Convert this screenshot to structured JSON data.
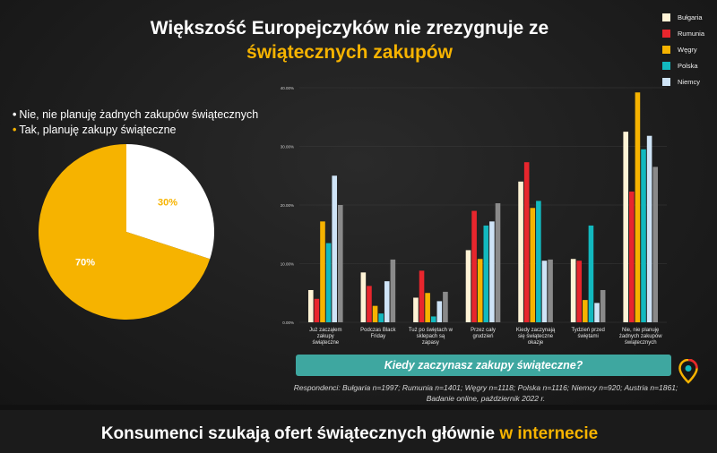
{
  "header": {
    "title_line1": "Większość Europejczyków nie zrezygnuje ze",
    "title_line2": "świątecznych zakupów"
  },
  "pie_legend": {
    "no_label": "Nie, nie planuję żadnych zakupów świątecznych",
    "yes_label": "Tak, planuję zakupy świąteczne",
    "no_color": "#ffffff",
    "yes_color": "#f6b300"
  },
  "question_banner": "Kiedy zaczynasz zakupy świąteczne?",
  "note": "Respondenci: Bułgaria n=1997; Rumunia n=1401; Węgry n=1118; Polska n=1116; Niemcy n=920; Austria n=1861; Badanie online, październik 2022 r.",
  "bottom": {
    "title_main": "Konsumenci szukają ofert świątecznych głównie ",
    "title_highlight": "w internecie"
  },
  "legend": [
    {
      "name": "Bułgaria",
      "color": "#fff3d6"
    },
    {
      "name": "Rumunia",
      "color": "#e8262d"
    },
    {
      "name": "Węgry",
      "color": "#f6b300"
    },
    {
      "name": "Polska",
      "color": "#12b9bf"
    },
    {
      "name": "Niemcy",
      "color": "#cfe4f7"
    }
  ],
  "chart_data": [
    {
      "type": "pie",
      "slices": [
        {
          "label": "Tak, planuję zakupy świąteczne",
          "value": 70,
          "display": "70%",
          "color": "#f6b300"
        },
        {
          "label": "Nie, nie planuję żadnych zakupów świątecznych",
          "value": 30,
          "display": "30%",
          "color": "#ffffff"
        }
      ]
    },
    {
      "type": "bar",
      "categories": [
        [
          "Już zacząłem",
          "zakupy",
          "świąteczne"
        ],
        [
          "Podczas Black",
          "Friday"
        ],
        [
          "Tuż po świętach w",
          "sklepach są",
          "zapasy"
        ],
        [
          "Przez cały",
          "grudzień"
        ],
        [
          "Kiedy zaczynają",
          "się świąteczne",
          "okazje"
        ],
        [
          "Tydzień przed",
          "świętami"
        ],
        [
          "Nie, nie planuję",
          "żadnych zakupów",
          "świątecznych"
        ]
      ],
      "ylim": [
        0,
        40
      ],
      "yticks": [
        0,
        10,
        20,
        30,
        40
      ],
      "ytick_labels": [
        "0.00%",
        "10.00%",
        "20.00%",
        "30.00%",
        "40.00%"
      ],
      "series": [
        {
          "name": "Bułgaria",
          "color": "#fff3d6",
          "values": [
            5.5,
            8.5,
            4.2,
            12.3,
            24.0,
            10.8,
            32.5
          ]
        },
        {
          "name": "Rumunia",
          "color": "#e8262d",
          "values": [
            4.0,
            6.2,
            8.8,
            19.0,
            27.3,
            10.5,
            22.3
          ]
        },
        {
          "name": "Węgry",
          "color": "#f6b300",
          "values": [
            17.2,
            2.8,
            5.0,
            10.8,
            19.5,
            3.8,
            39.2
          ]
        },
        {
          "name": "Polska",
          "color": "#12b9bf",
          "values": [
            13.5,
            1.5,
            1.0,
            16.5,
            20.7,
            16.5,
            29.5
          ]
        },
        {
          "name": "Niemcy",
          "color": "#cfe4f7",
          "values": [
            25.0,
            7.0,
            3.6,
            17.2,
            10.5,
            3.3,
            31.8
          ]
        },
        {
          "name": "",
          "color": "#8a8a8a",
          "values": [
            20.0,
            10.7,
            5.2,
            20.3,
            10.7,
            5.5,
            26.5
          ]
        }
      ]
    }
  ]
}
